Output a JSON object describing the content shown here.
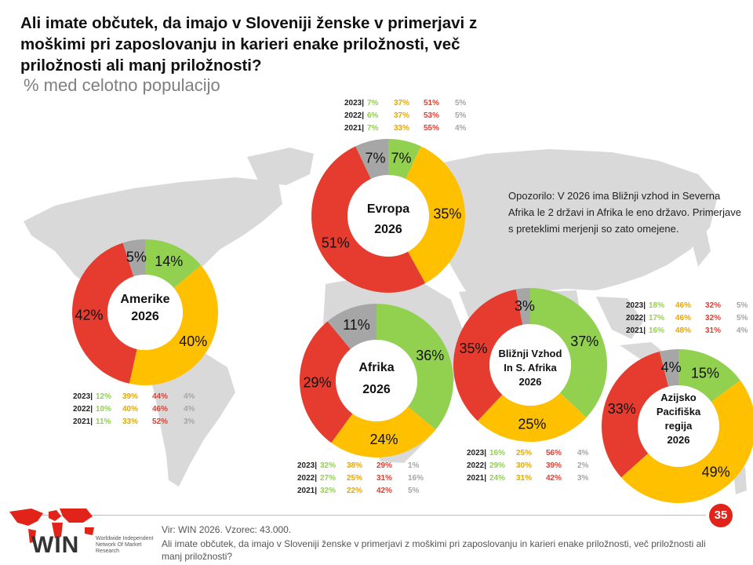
{
  "title": "Ali imate občutek, da imajo v Sloveniji ženske v primerjavi z moškimi pri zaposlovanju in karieri enake priložnosti,  več priložnosti ali manj priložnosti?",
  "subtitle": "% med celotno populacijo",
  "note": "Opozorilo:  V 2026 ima Bližnji vzhod in Severna Afrika le 2 državi in Afrika le eno državo.  Primerjave s preteklimi merjenji so zato omejene.",
  "source": "Vir: WIN 2026.  Vzorec: 43.000.",
  "question": "Ali imate občutek, da imajo v Sloveniji ženske v primerjavi z moškimi pri zaposlovanju in karieri enake priložnosti, več priložnosti ali manj priložnosti?",
  "page_number": "35",
  "logo": {
    "name": "WIN",
    "sub": "Worldwide Independent Network Of Market Research"
  },
  "colors": {
    "green": "#92d050",
    "yellow": "#ffc000",
    "red": "#e63c2f",
    "grey": "#a6a6a6",
    "map": "#d9d9d9"
  },
  "chart_data": [
    {
      "type": "donut",
      "region": "Evropa",
      "label_lines": [
        "Evropa",
        "2026"
      ],
      "values": {
        "green": 7,
        "yellow": 35,
        "red": 51,
        "grey": 7
      },
      "value_labels": {
        "green": "7%",
        "yellow": "35%",
        "red": "51%",
        "grey": "7%"
      },
      "history": [
        {
          "year": "2023|",
          "values": [
            "7%",
            "37%",
            "51%",
            "5%"
          ]
        },
        {
          "year": "2022|",
          "values": [
            "6%",
            "37%",
            "53%",
            "5%"
          ]
        },
        {
          "year": "2021|",
          "values": [
            "7%",
            "33%",
            "55%",
            "4%"
          ]
        }
      ]
    },
    {
      "type": "donut",
      "region": "Amerike",
      "label_lines": [
        "Amerike",
        "2026"
      ],
      "values": {
        "green": 14,
        "yellow": 40,
        "red": 42,
        "grey": 5
      },
      "value_labels": {
        "green": "14%",
        "yellow": "40%",
        "red": "42%",
        "grey": "5%"
      },
      "history": [
        {
          "year": "2023|",
          "values": [
            "12%",
            "39%",
            "44%",
            "4%"
          ]
        },
        {
          "year": "2022|",
          "values": [
            "10%",
            "40%",
            "46%",
            "4%"
          ]
        },
        {
          "year": "2021|",
          "values": [
            "11%",
            "33%",
            "52%",
            "3%"
          ]
        }
      ]
    },
    {
      "type": "donut",
      "region": "Afrika",
      "label_lines": [
        "Afrika",
        "2026"
      ],
      "values": {
        "green": 36,
        "yellow": 24,
        "red": 29,
        "grey": 11
      },
      "value_labels": {
        "green": "36%",
        "yellow": "24%",
        "red": "29%",
        "grey": "11%"
      },
      "history": [
        {
          "year": "2023|",
          "values": [
            "32%",
            "38%",
            "29%",
            "1%"
          ]
        },
        {
          "year": "2022|",
          "values": [
            "27%",
            "25%",
            "31%",
            "16%"
          ]
        },
        {
          "year": "2021|",
          "values": [
            "32%",
            "22%",
            "42%",
            "5%"
          ]
        }
      ]
    },
    {
      "type": "donut",
      "region": "Bližnji Vzhod In S. Afrika",
      "label_lines": [
        "Bližnji Vzhod",
        "In S. Afrika",
        "2026"
      ],
      "values": {
        "green": 37,
        "yellow": 25,
        "red": 35,
        "grey": 3
      },
      "value_labels": {
        "green": "37%",
        "yellow": "25%",
        "red": "35%",
        "grey": "3%"
      },
      "history": [
        {
          "year": "2023|",
          "values": [
            "16%",
            "25%",
            "56%",
            "4%"
          ]
        },
        {
          "year": "2022|",
          "values": [
            "29%",
            "30%",
            "39%",
            "2%"
          ]
        },
        {
          "year": "2021|",
          "values": [
            "24%",
            "31%",
            "42%",
            "3%"
          ]
        }
      ]
    },
    {
      "type": "donut",
      "region": "Azijsko Pacifiška regija",
      "label_lines": [
        "Azijsko",
        "Pacifiška",
        "regija",
        "2026"
      ],
      "values": {
        "green": 15,
        "yellow": 49,
        "red": 33,
        "grey": 4
      },
      "value_labels": {
        "green": "15%",
        "yellow": "49%",
        "red": "33%",
        "grey": "4%"
      },
      "history": [
        {
          "year": "2023|",
          "values": [
            "18%",
            "46%",
            "32%",
            "5%"
          ]
        },
        {
          "year": "2022|",
          "values": [
            "17%",
            "46%",
            "32%",
            "5%"
          ]
        },
        {
          "year": "2021|",
          "values": [
            "16%",
            "48%",
            "31%",
            "4%"
          ]
        }
      ]
    }
  ]
}
